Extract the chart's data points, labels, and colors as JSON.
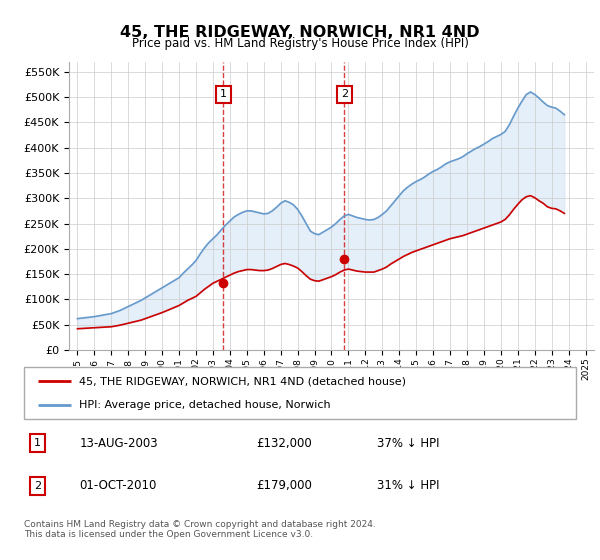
{
  "title": "45, THE RIDGEWAY, NORWICH, NR1 4ND",
  "subtitle": "Price paid vs. HM Land Registry's House Price Index (HPI)",
  "ylabel_ticks": [
    "£0",
    "£50K",
    "£100K",
    "£150K",
    "£200K",
    "£250K",
    "£300K",
    "£350K",
    "£400K",
    "£450K",
    "£500K",
    "£550K"
  ],
  "ytick_values": [
    0,
    50000,
    100000,
    150000,
    200000,
    250000,
    300000,
    350000,
    400000,
    450000,
    500000,
    550000
  ],
  "ylim": [
    0,
    570000
  ],
  "purchase_points": [
    {
      "year": 2003.62,
      "value": 132000,
      "label": "1"
    },
    {
      "year": 2010.75,
      "value": 179000,
      "label": "2"
    }
  ],
  "vline_color": "#cc0000",
  "shade_color": "#cce0f5",
  "shade_alpha": 0.5,
  "hpi_color": "#6699cc",
  "red_line_color": "#cc0000",
  "grid_color": "#cccccc",
  "bg_color": "#ffffff",
  "legend_entries": [
    "45, THE RIDGEWAY, NORWICH, NR1 4ND (detached house)",
    "HPI: Average price, detached house, Norwich"
  ],
  "legend_colors": [
    "#cc0000",
    "#6699cc"
  ],
  "table_rows": [
    {
      "num": "1",
      "date": "13-AUG-2003",
      "price": "£132,000",
      "pct": "37% ↓ HPI"
    },
    {
      "num": "2",
      "date": "01-OCT-2010",
      "price": "£179,000",
      "pct": "31% ↓ HPI"
    }
  ],
  "footnote": "Contains HM Land Registry data © Crown copyright and database right 2024.\nThis data is licensed under the Open Government Licence v3.0.",
  "xlim": [
    1994.5,
    2025.5
  ]
}
